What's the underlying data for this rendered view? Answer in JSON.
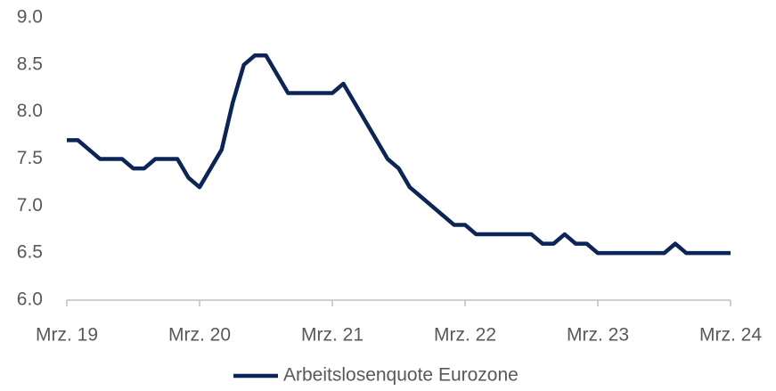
{
  "chart_data": {
    "type": "line",
    "categories": [
      "Mrz. 19",
      null,
      null,
      null,
      null,
      null,
      null,
      null,
      null,
      null,
      null,
      null,
      "Mrz. 20",
      null,
      null,
      null,
      null,
      null,
      null,
      null,
      null,
      null,
      null,
      null,
      "Mrz. 21",
      null,
      null,
      null,
      null,
      null,
      null,
      null,
      null,
      null,
      null,
      null,
      "Mrz. 22",
      null,
      null,
      null,
      null,
      null,
      null,
      null,
      null,
      null,
      null,
      null,
      "Mrz. 23",
      null,
      null,
      null,
      null,
      null,
      null,
      null,
      null,
      null,
      null,
      null,
      "Mrz. 24"
    ],
    "series": [
      {
        "name": "Arbeitslosenquote Eurozone",
        "color": "#0b2559",
        "values": [
          7.7,
          7.7,
          7.6,
          7.5,
          7.5,
          7.5,
          7.4,
          7.4,
          7.5,
          7.5,
          7.5,
          7.3,
          7.2,
          7.4,
          7.6,
          8.1,
          8.5,
          8.6,
          8.6,
          8.4,
          8.2,
          8.2,
          8.2,
          8.2,
          8.2,
          8.3,
          8.1,
          7.9,
          7.7,
          7.5,
          7.4,
          7.2,
          7.1,
          7.0,
          6.9,
          6.8,
          6.8,
          6.7,
          6.7,
          6.7,
          6.7,
          6.7,
          6.7,
          6.6,
          6.6,
          6.7,
          6.6,
          6.6,
          6.5,
          6.5,
          6.5,
          6.5,
          6.5,
          6.5,
          6.5,
          6.6,
          6.5,
          6.5,
          6.5,
          6.5,
          6.5
        ]
      }
    ],
    "ylim": [
      6.0,
      9.0
    ],
    "yticks": [
      {
        "value": 6.0,
        "label": "6.0"
      },
      {
        "value": 6.5,
        "label": "6.5"
      },
      {
        "value": 7.0,
        "label": "7.0"
      },
      {
        "value": 7.5,
        "label": "7.5"
      },
      {
        "value": 8.0,
        "label": "8.0"
      },
      {
        "value": 8.5,
        "label": "8.5"
      },
      {
        "value": 9.0,
        "label": "9.0"
      }
    ],
    "grid": false,
    "legend": "bottom"
  }
}
